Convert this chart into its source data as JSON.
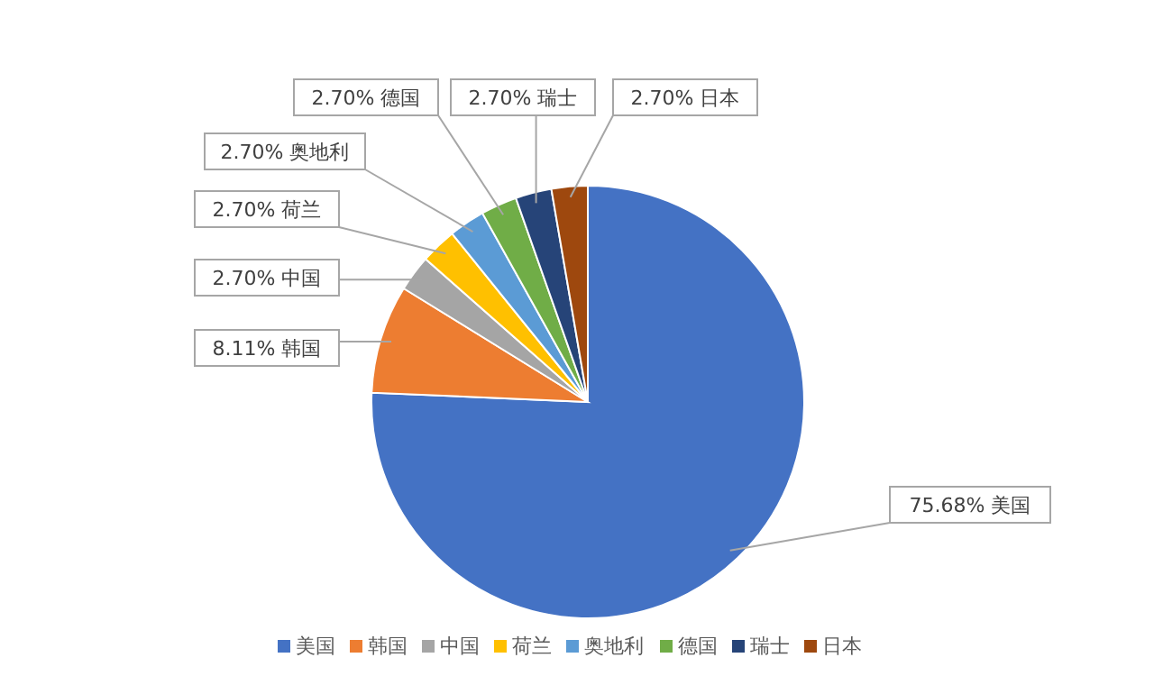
{
  "chart_data": {
    "type": "pie",
    "categories": [
      "美国",
      "韩国",
      "中国",
      "荷兰",
      "奥地利",
      "德国",
      "瑞士",
      "日本"
    ],
    "values": [
      75.68,
      8.11,
      2.7,
      2.7,
      2.7,
      2.7,
      2.7,
      2.7
    ],
    "value_labels": [
      "75.68%",
      "8.11%",
      "2.70%",
      "2.70%",
      "2.70%",
      "2.70%",
      "2.70%",
      "2.70%"
    ],
    "colors": [
      "#4472c4",
      "#ed7d31",
      "#a5a5a5",
      "#ffc000",
      "#5b9bd5",
      "#70ad47",
      "#264478",
      "#9e480e"
    ],
    "legend": "bottom"
  }
}
